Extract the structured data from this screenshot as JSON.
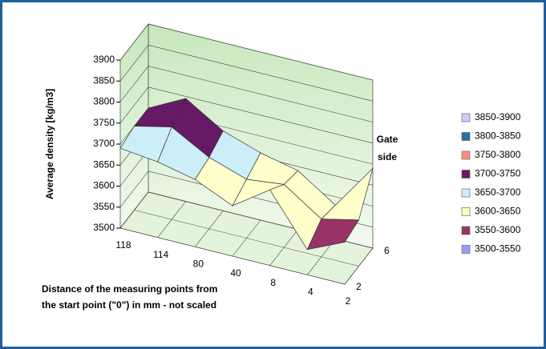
{
  "chart_data": {
    "type": "surface",
    "zlabel": "Average density [kg/m3]",
    "xlabel": [
      "Distance of the measuring points from",
      "the start point  (\"0\") in mm - not scaled"
    ],
    "annotation": [
      "Gate",
      "side"
    ],
    "categories": [
      "118",
      "114",
      "80",
      "40",
      "8",
      "4",
      "2"
    ],
    "series": [
      {
        "name": "2",
        "values": [
          3690,
          3680,
          3660,
          3620,
          3680,
          3560,
          3600
        ]
      },
      {
        "name": null,
        "values": [
          3700,
          3720,
          3670,
          3640,
          3650,
          3590,
          3610
        ]
      },
      {
        "name": "6",
        "values": [
          3700,
          3745,
          3690,
          3660,
          3640,
          3580,
          3690
        ]
      }
    ],
    "zlim": [
      3500,
      3900
    ],
    "zticks": [
      3500,
      3550,
      3600,
      3650,
      3700,
      3750,
      3800,
      3850,
      3900
    ],
    "grid": true,
    "legend": "right",
    "bands": [
      {
        "label": "3850-3900",
        "from": 3850,
        "to": 3900,
        "color": "#ccccff"
      },
      {
        "label": "3800-3850",
        "from": 3800,
        "to": 3850,
        "color": "#2a6fa6"
      },
      {
        "label": "3750-3800",
        "from": 3750,
        "to": 3800,
        "color": "#ff8c7a"
      },
      {
        "label": "3700-3750",
        "from": 3700,
        "to": 3750,
        "color": "#661a66"
      },
      {
        "label": "3650-3700",
        "from": 3650,
        "to": 3700,
        "color": "#cceef8"
      },
      {
        "label": "3600-3650",
        "from": 3600,
        "to": 3650,
        "color": "#ffffcc"
      },
      {
        "label": "3550-3600",
        "from": 3550,
        "to": 3600,
        "color": "#993366"
      },
      {
        "label": "3500-3550",
        "from": 3500,
        "to": 3550,
        "color": "#9999ff"
      }
    ]
  }
}
